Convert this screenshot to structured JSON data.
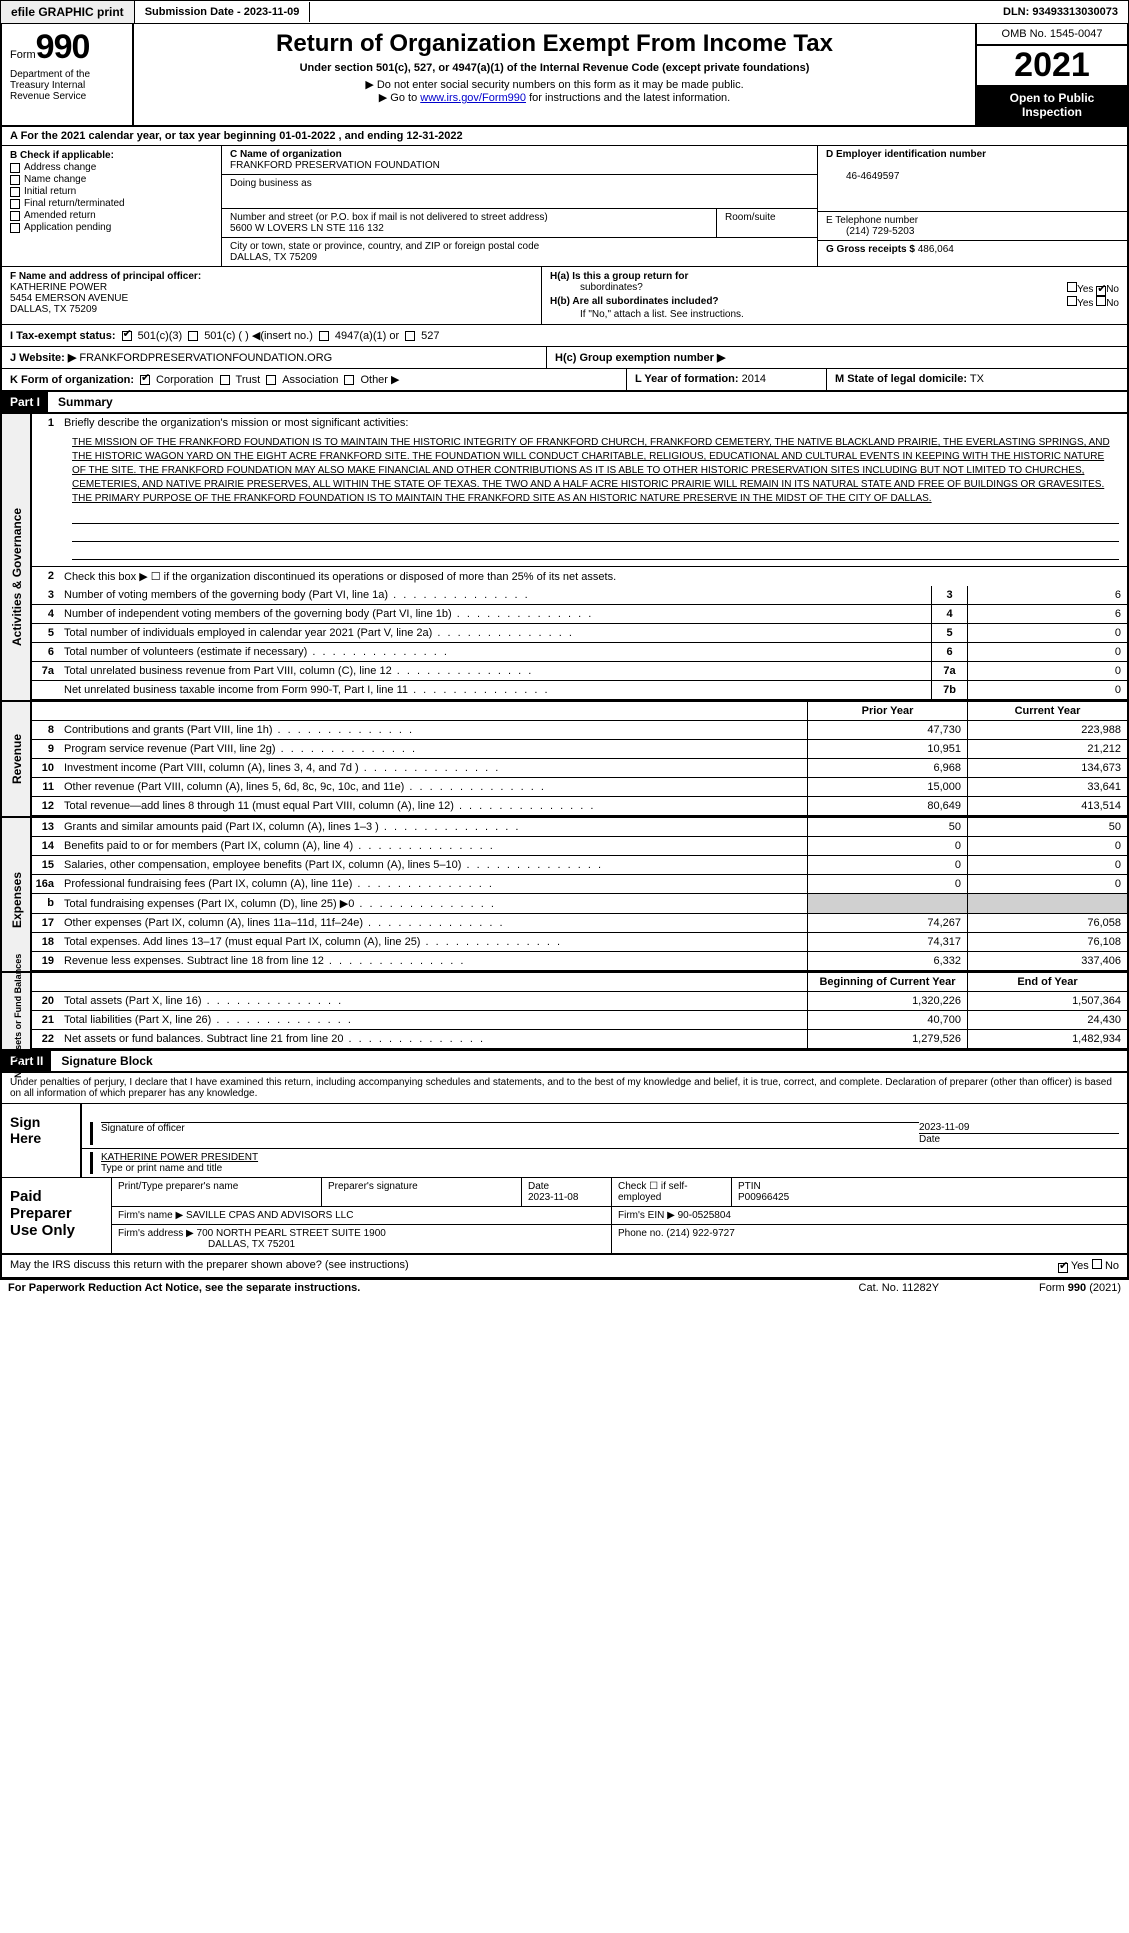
{
  "topbar": {
    "efile": "efile GRAPHIC print",
    "submission": "Submission Date - 2023-11-09",
    "dln": "DLN: 93493313030073"
  },
  "header": {
    "form": "Form",
    "num": "990",
    "dept": "Department of the Treasury Internal Revenue Service",
    "title": "Return of Organization Exempt From Income Tax",
    "subtitle": "Under section 501(c), 527, or 4947(a)(1) of the Internal Revenue Code (except private foundations)",
    "note1": "▶ Do not enter social security numbers on this form as it may be made public.",
    "note2_pre": "▶ Go to ",
    "note2_link": "www.irs.gov/Form990",
    "note2_post": " for instructions and the latest information.",
    "omb": "OMB No. 1545-0047",
    "year": "2021",
    "open": "Open to Public Inspection"
  },
  "row_a": "A For the 2021 calendar year, or tax year beginning 01-01-2022   , and ending 12-31-2022",
  "b": {
    "header": "B Check if applicable:",
    "items": [
      "Address change",
      "Name change",
      "Initial return",
      "Final return/terminated",
      "Amended return",
      "Application pending"
    ]
  },
  "c": {
    "name_lbl": "C Name of organization",
    "name": "FRANKFORD PRESERVATION FOUNDATION",
    "dba_lbl": "Doing business as",
    "addr_lbl": "Number and street (or P.O. box if mail is not delivered to street address)",
    "room_lbl": "Room/suite",
    "addr": "5600 W LOVERS LN STE 116 132",
    "city_lbl": "City or town, state or province, country, and ZIP or foreign postal code",
    "city": "DALLAS, TX  75209"
  },
  "d": {
    "lbl": "D Employer identification number",
    "val": "46-4649597"
  },
  "e": {
    "lbl": "E Telephone number",
    "val": "(214) 729-5203"
  },
  "g": {
    "lbl": "G Gross receipts $",
    "val": "486,064"
  },
  "f": {
    "lbl": "F  Name and address of principal officer:",
    "name": "KATHERINE POWER",
    "addr1": "5454 EMERSON AVENUE",
    "addr2": "DALLAS, TX  75209"
  },
  "h": {
    "a": "H(a)  Is this a group return for",
    "a2": "subordinates?",
    "b": "H(b)  Are all subordinates included?",
    "bnote": "If \"No,\" attach a list. See instructions.",
    "c": "H(c)  Group exemption number ▶",
    "yes": "Yes",
    "no": "No"
  },
  "i": {
    "lbl": "I   Tax-exempt status:",
    "o1": "501(c)(3)",
    "o2": "501(c) (  ) ◀(insert no.)",
    "o3": "4947(a)(1) or",
    "o4": "527"
  },
  "j": {
    "lbl": "J  Website: ▶",
    "val": "FRANKFORDPRESERVATIONFOUNDATION.ORG"
  },
  "k": {
    "lbl": "K Form of organization:",
    "o1": "Corporation",
    "o2": "Trust",
    "o3": "Association",
    "o4": "Other ▶"
  },
  "l": {
    "lbl": "L Year of formation:",
    "val": "2014"
  },
  "m": {
    "lbl": "M State of legal domicile:",
    "val": "TX"
  },
  "part1": {
    "tag": "Part I",
    "title": "Summary"
  },
  "vtab1": "Activities & Governance",
  "vtab2": "Revenue",
  "vtab3": "Expenses",
  "vtab4": "Net Assets or Fund Balances",
  "line1_lbl": "Briefly describe the organization's mission or most significant activities:",
  "mission": "THE MISSION OF THE FRANKFORD FOUNDATION IS TO MAINTAIN THE HISTORIC INTEGRITY OF FRANKFORD CHURCH, FRANKFORD CEMETERY, THE NATIVE BLACKLAND PRAIRIE, THE EVERLASTING SPRINGS, AND THE HISTORIC WAGON YARD ON THE EIGHT ACRE FRANKFORD SITE. THE FOUNDATION WILL CONDUCT CHARITABLE, RELIGIOUS, EDUCATIONAL AND CULTURAL EVENTS IN KEEPING WITH THE HISTORIC NATURE OF THE SITE. THE FRANKFORD FOUNDATION MAY ALSO MAKE FINANCIAL AND OTHER CONTRIBUTIONS AS IT IS ABLE TO OTHER HISTORIC PRESERVATION SITES INCLUDING BUT NOT LIMITED TO CHURCHES, CEMETERIES, AND NATIVE PRAIRIE PRESERVES, ALL WITHIN THE STATE OF TEXAS. THE TWO AND A HALF ACRE HISTORIC PRAIRIE WILL REMAIN IN ITS NATURAL STATE AND FREE OF BUILDINGS OR GRAVESITES. THE PRIMARY PURPOSE OF THE FRANKFORD FOUNDATION IS TO MAINTAIN THE FRANKFORD SITE AS AN HISTORIC NATURE PRESERVE IN THE MIDST OF THE CITY OF DALLAS.",
  "line2": "Check this box ▶ ☐ if the organization discontinued its operations or disposed of more than 25% of its net assets.",
  "gov_lines": [
    {
      "n": "3",
      "d": "Number of voting members of the governing body (Part VI, line 1a)",
      "bn": "3",
      "v": "6"
    },
    {
      "n": "4",
      "d": "Number of independent voting members of the governing body (Part VI, line 1b)",
      "bn": "4",
      "v": "6"
    },
    {
      "n": "5",
      "d": "Total number of individuals employed in calendar year 2021 (Part V, line 2a)",
      "bn": "5",
      "v": "0"
    },
    {
      "n": "6",
      "d": "Total number of volunteers (estimate if necessary)",
      "bn": "6",
      "v": "0"
    },
    {
      "n": "7a",
      "d": "Total unrelated business revenue from Part VIII, column (C), line 12",
      "bn": "7a",
      "v": "0"
    },
    {
      "n": "",
      "d": "Net unrelated business taxable income from Form 990-T, Part I, line 11",
      "bn": "7b",
      "v": "0"
    }
  ],
  "hdr_vals": {
    "py": "Prior Year",
    "cy": "Current Year"
  },
  "rev_lines": [
    {
      "n": "8",
      "d": "Contributions and grants (Part VIII, line 1h)",
      "py": "47,730",
      "cy": "223,988"
    },
    {
      "n": "9",
      "d": "Program service revenue (Part VIII, line 2g)",
      "py": "10,951",
      "cy": "21,212"
    },
    {
      "n": "10",
      "d": "Investment income (Part VIII, column (A), lines 3, 4, and 7d )",
      "py": "6,968",
      "cy": "134,673"
    },
    {
      "n": "11",
      "d": "Other revenue (Part VIII, column (A), lines 5, 6d, 8c, 9c, 10c, and 11e)",
      "py": "15,000",
      "cy": "33,641"
    },
    {
      "n": "12",
      "d": "Total revenue—add lines 8 through 11 (must equal Part VIII, column (A), line 12)",
      "py": "80,649",
      "cy": "413,514"
    }
  ],
  "exp_lines": [
    {
      "n": "13",
      "d": "Grants and similar amounts paid (Part IX, column (A), lines 1–3 )",
      "py": "50",
      "cy": "50"
    },
    {
      "n": "14",
      "d": "Benefits paid to or for members (Part IX, column (A), line 4)",
      "py": "0",
      "cy": "0"
    },
    {
      "n": "15",
      "d": "Salaries, other compensation, employee benefits (Part IX, column (A), lines 5–10)",
      "py": "0",
      "cy": "0"
    },
    {
      "n": "16a",
      "d": "Professional fundraising fees (Part IX, column (A), line 11e)",
      "py": "0",
      "cy": "0"
    },
    {
      "n": "b",
      "d": "Total fundraising expenses (Part IX, column (D), line 25) ▶0",
      "py": "",
      "cy": "",
      "g": true
    },
    {
      "n": "17",
      "d": "Other expenses (Part IX, column (A), lines 11a–11d, 11f–24e)",
      "py": "74,267",
      "cy": "76,058"
    },
    {
      "n": "18",
      "d": "Total expenses. Add lines 13–17 (must equal Part IX, column (A), line 25)",
      "py": "74,317",
      "cy": "76,108"
    },
    {
      "n": "19",
      "d": "Revenue less expenses. Subtract line 18 from line 12",
      "py": "6,332",
      "cy": "337,406"
    }
  ],
  "hdr_vals2": {
    "py": "Beginning of Current Year",
    "cy": "End of Year"
  },
  "net_lines": [
    {
      "n": "20",
      "d": "Total assets (Part X, line 16)",
      "py": "1,320,226",
      "cy": "1,507,364"
    },
    {
      "n": "21",
      "d": "Total liabilities (Part X, line 26)",
      "py": "40,700",
      "cy": "24,430"
    },
    {
      "n": "22",
      "d": "Net assets or fund balances. Subtract line 21 from line 20",
      "py": "1,279,526",
      "cy": "1,482,934"
    }
  ],
  "part2": {
    "tag": "Part II",
    "title": "Signature Block"
  },
  "sig_decl": "Under penalties of perjury, I declare that I have examined this return, including accompanying schedules and statements, and to the best of my knowledge and belief, it is true, correct, and complete. Declaration of preparer (other than officer) is based on all information of which preparer has any knowledge.",
  "sign": {
    "here": "Sign Here",
    "sig_lbl": "Signature of officer",
    "date_lbl": "Date",
    "date": "2023-11-09",
    "name": "KATHERINE POWER PRESIDENT",
    "name_lbl": "Type or print name and title"
  },
  "prep": {
    "title": "Paid Preparer Use Only",
    "h1": "Print/Type preparer's name",
    "h2": "Preparer's signature",
    "h3": "Date",
    "h3v": "2023-11-08",
    "h4": "Check ☐ if self-employed",
    "h5": "PTIN",
    "h5v": "P00966425",
    "firm_lbl": "Firm's name    ▶",
    "firm": "SAVILLE CPAS AND ADVISORS LLC",
    "ein_lbl": "Firm's EIN ▶",
    "ein": "90-0525804",
    "addr_lbl": "Firm's address ▶",
    "addr": "700 NORTH PEARL STREET SUITE 1900",
    "addr2": "DALLAS, TX  75201",
    "phone_lbl": "Phone no.",
    "phone": "(214) 922-9727"
  },
  "discuss": {
    "q": "May the IRS discuss this return with the preparer shown above? (see instructions)",
    "yes": "Yes",
    "no": "No"
  },
  "footer": {
    "pra": "For Paperwork Reduction Act Notice, see the separate instructions.",
    "cat": "Cat. No. 11282Y",
    "form": "Form 990 (2021)"
  }
}
